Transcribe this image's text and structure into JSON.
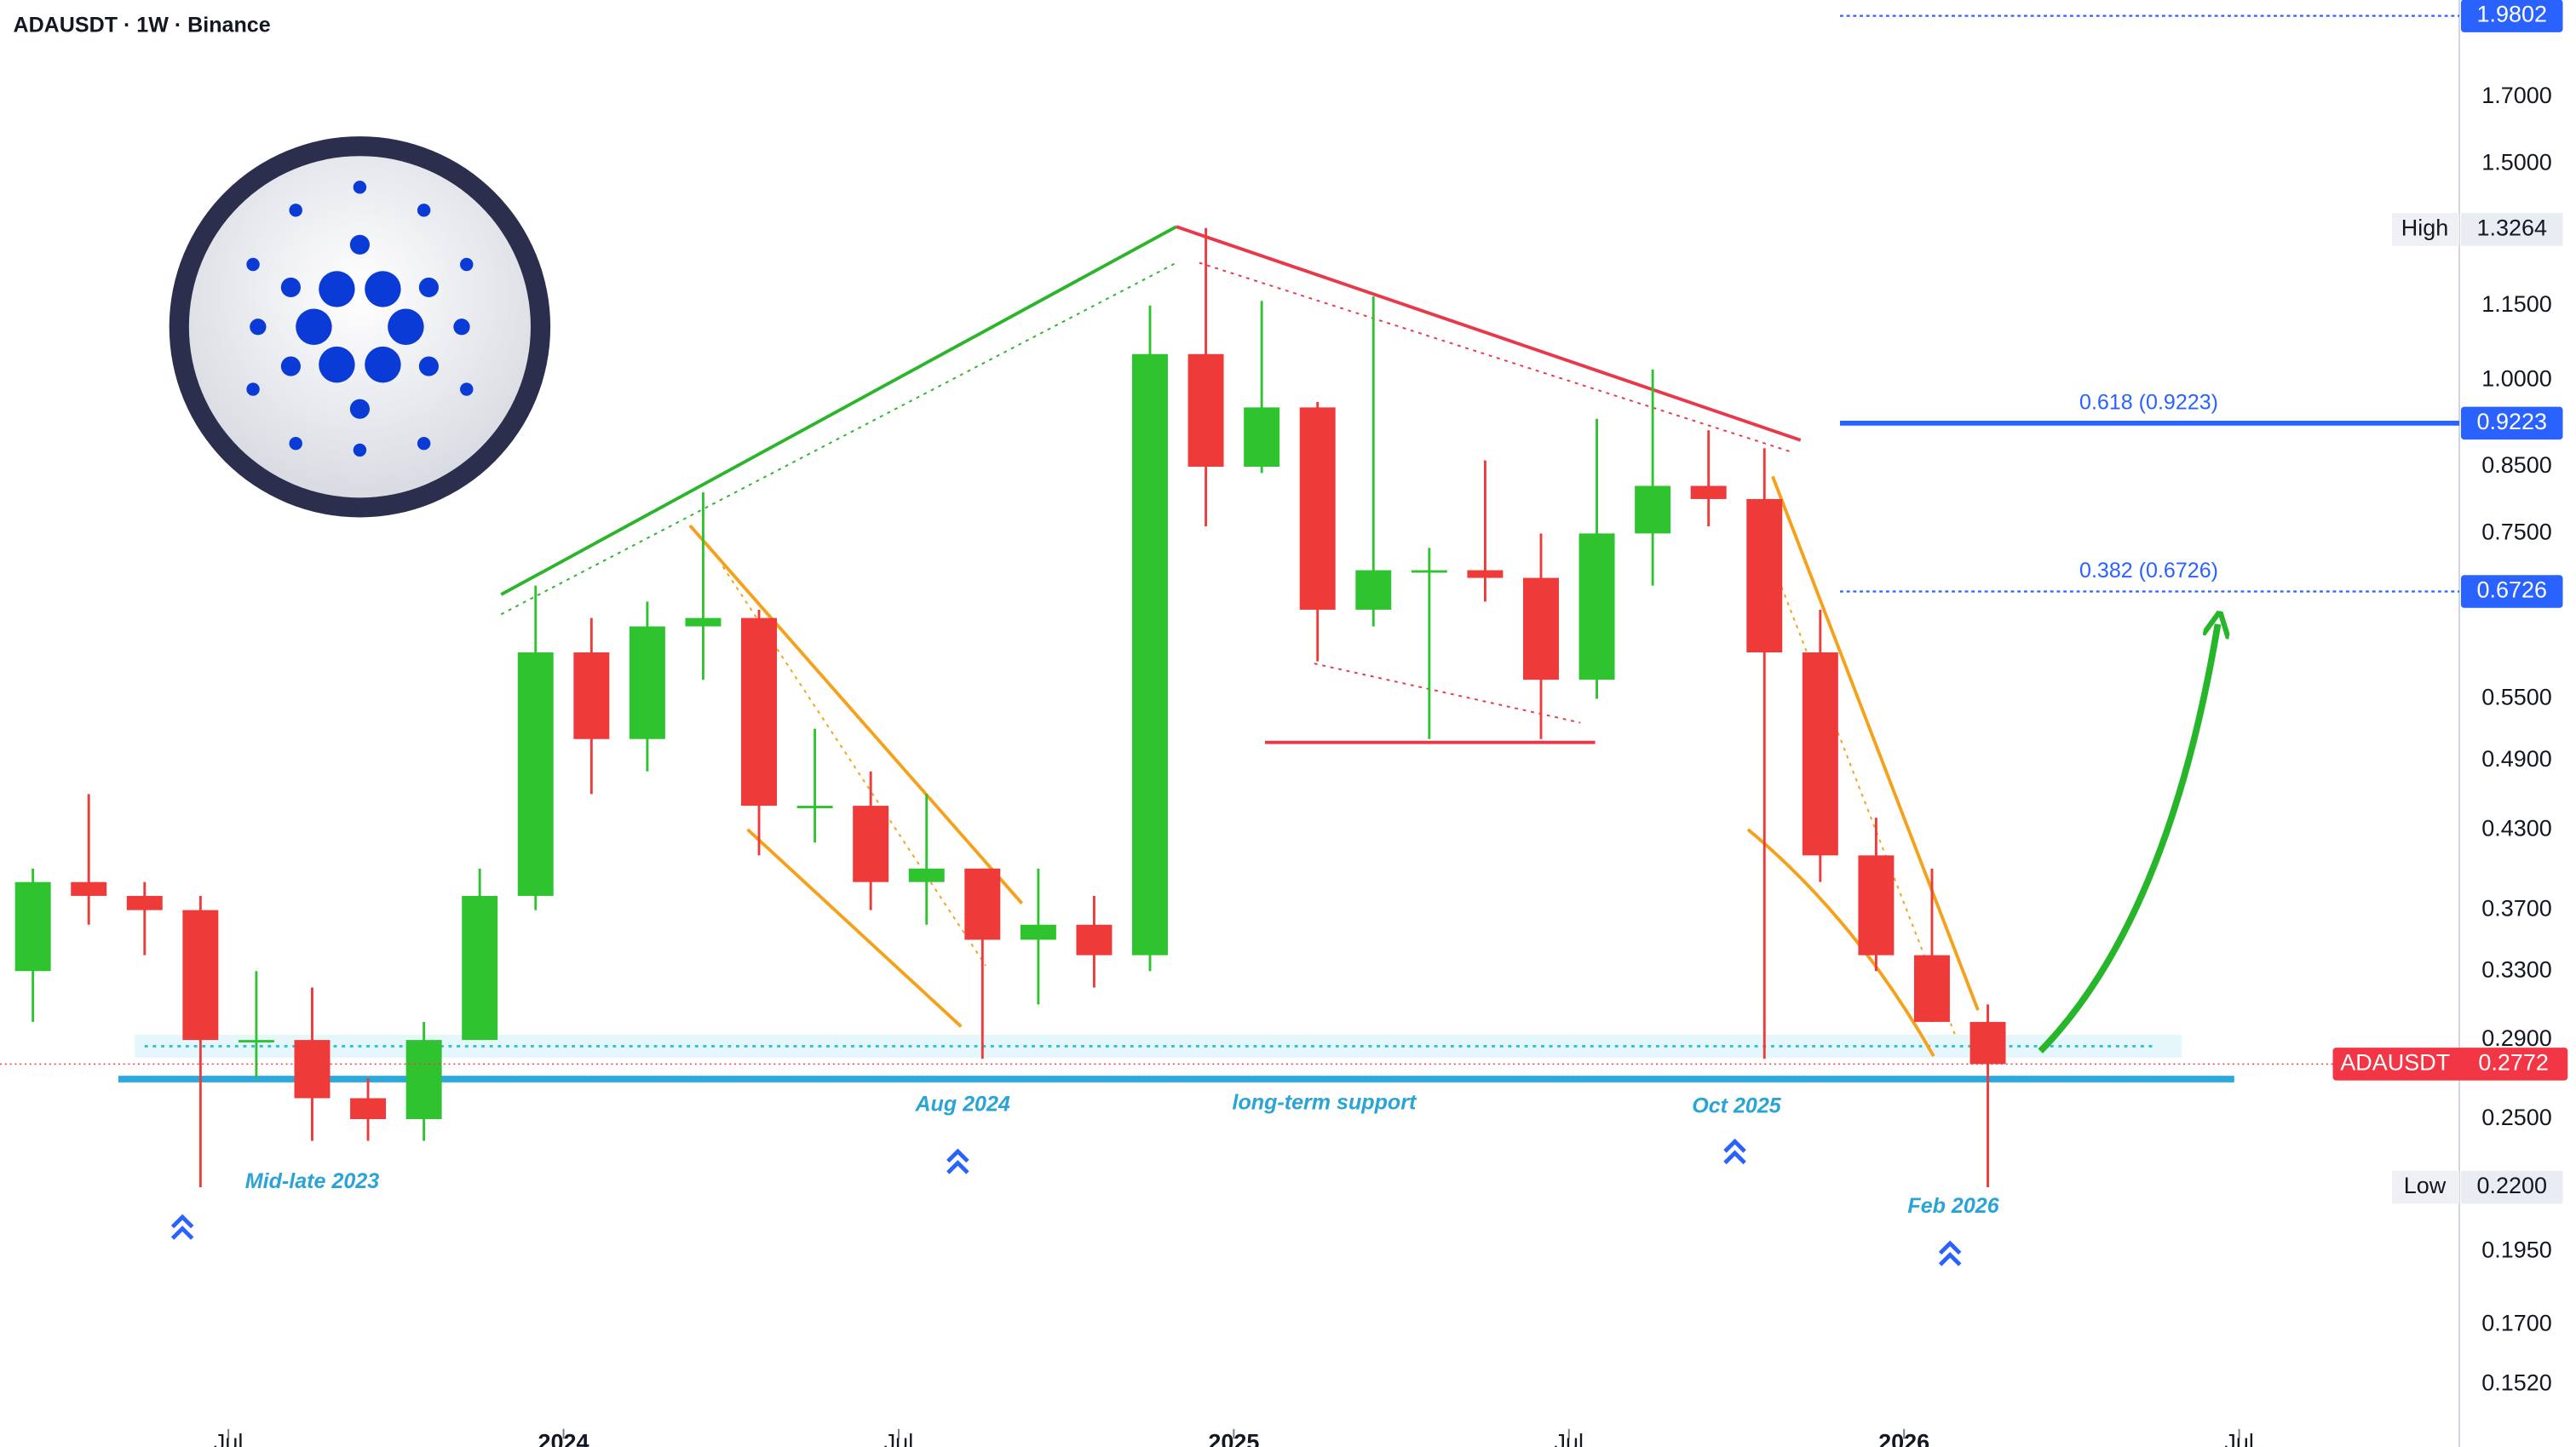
{
  "chart_data": {
    "type": "candlestick",
    "title": "ADAUSDT · 1W · Binance",
    "log_scale": true,
    "up_color": "#2fc42f",
    "down_color": "#ef3a3a",
    "categories": [
      "2023-03",
      "2023-04",
      "2023-05",
      "2023-06",
      "2023-07",
      "2023-08",
      "2023-09",
      "2023-10",
      "2023-11",
      "2023-12",
      "2024-01",
      "2024-02",
      "2024-03",
      "2024-04",
      "2024-05",
      "2024-06",
      "2024-07",
      "2024-08",
      "2024-09",
      "2024-10",
      "2024-11",
      "2024-12",
      "2025-01",
      "2025-02",
      "2025-03",
      "2025-04",
      "2025-05",
      "2025-06",
      "2025-07",
      "2025-08",
      "2025-09",
      "2025-10",
      "2025-11",
      "2025-12",
      "2026-01",
      "2026-02"
    ],
    "ohlc": [
      {
        "o": 0.33,
        "h": 0.4,
        "l": 0.3,
        "c": 0.39
      },
      {
        "o": 0.39,
        "h": 0.46,
        "l": 0.36,
        "c": 0.38
      },
      {
        "o": 0.38,
        "h": 0.39,
        "l": 0.34,
        "c": 0.37
      },
      {
        "o": 0.37,
        "h": 0.38,
        "l": 0.22,
        "c": 0.29
      },
      {
        "o": 0.29,
        "h": 0.33,
        "l": 0.27,
        "c": 0.29
      },
      {
        "o": 0.29,
        "h": 0.32,
        "l": 0.24,
        "c": 0.26
      },
      {
        "o": 0.26,
        "h": 0.27,
        "l": 0.24,
        "c": 0.25
      },
      {
        "o": 0.25,
        "h": 0.3,
        "l": 0.24,
        "c": 0.29
      },
      {
        "o": 0.29,
        "h": 0.4,
        "l": 0.29,
        "c": 0.38
      },
      {
        "o": 0.38,
        "h": 0.68,
        "l": 0.37,
        "c": 0.6
      },
      {
        "o": 0.6,
        "h": 0.64,
        "l": 0.46,
        "c": 0.51
      },
      {
        "o": 0.51,
        "h": 0.66,
        "l": 0.48,
        "c": 0.63
      },
      {
        "o": 0.63,
        "h": 0.81,
        "l": 0.57,
        "c": 0.64
      },
      {
        "o": 0.64,
        "h": 0.65,
        "l": 0.41,
        "c": 0.45
      },
      {
        "o": 0.45,
        "h": 0.52,
        "l": 0.42,
        "c": 0.45
      },
      {
        "o": 0.45,
        "h": 0.48,
        "l": 0.37,
        "c": 0.39
      },
      {
        "o": 0.39,
        "h": 0.46,
        "l": 0.36,
        "c": 0.4
      },
      {
        "o": 0.4,
        "h": 0.4,
        "l": 0.28,
        "c": 0.35
      },
      {
        "o": 0.35,
        "h": 0.4,
        "l": 0.31,
        "c": 0.36
      },
      {
        "o": 0.36,
        "h": 0.38,
        "l": 0.32,
        "c": 0.34
      },
      {
        "o": 0.34,
        "h": 1.15,
        "l": 0.33,
        "c": 1.05
      },
      {
        "o": 1.05,
        "h": 1.33,
        "l": 0.76,
        "c": 0.85
      },
      {
        "o": 0.85,
        "h": 1.16,
        "l": 0.84,
        "c": 0.95
      },
      {
        "o": 0.95,
        "h": 0.96,
        "l": 0.59,
        "c": 0.65
      },
      {
        "o": 0.65,
        "h": 1.17,
        "l": 0.63,
        "c": 0.7
      },
      {
        "o": 0.7,
        "h": 0.73,
        "l": 0.51,
        "c": 0.7
      },
      {
        "o": 0.7,
        "h": 0.86,
        "l": 0.66,
        "c": 0.69
      },
      {
        "o": 0.69,
        "h": 0.75,
        "l": 0.51,
        "c": 0.57
      },
      {
        "o": 0.57,
        "h": 0.93,
        "l": 0.55,
        "c": 0.75
      },
      {
        "o": 0.75,
        "h": 1.02,
        "l": 0.68,
        "c": 0.82
      },
      {
        "o": 0.82,
        "h": 0.91,
        "l": 0.76,
        "c": 0.8
      },
      {
        "o": 0.8,
        "h": 0.88,
        "l": 0.28,
        "c": 0.6
      },
      {
        "o": 0.6,
        "h": 0.65,
        "l": 0.39,
        "c": 0.41
      },
      {
        "o": 0.41,
        "h": 0.44,
        "l": 0.33,
        "c": 0.34
      },
      {
        "o": 0.34,
        "h": 0.4,
        "l": 0.3,
        "c": 0.3
      },
      {
        "o": 0.3,
        "h": 0.31,
        "l": 0.22,
        "c": 0.2772
      }
    ],
    "xticks": [
      {
        "value": "2023-07",
        "label": "Jul"
      },
      {
        "value": "2024-01",
        "label": "2024"
      },
      {
        "value": "2024-07",
        "label": "Jul"
      },
      {
        "value": "2025-01",
        "label": "2025"
      },
      {
        "value": "2025-07",
        "label": "Jul"
      },
      {
        "value": "2026-01",
        "label": "2026"
      },
      {
        "value": "2026-07",
        "label": "Jul"
      }
    ],
    "ylim": [
      0.1433,
      2.04
    ],
    "yticks": [
      {
        "value": 1.7,
        "label": "1.7000"
      },
      {
        "value": 1.5,
        "label": "1.5000"
      },
      {
        "value": 1.15,
        "label": "1.1500"
      },
      {
        "value": 1.0,
        "label": "1.0000"
      },
      {
        "value": 0.85,
        "label": "0.8500"
      },
      {
        "value": 0.75,
        "label": "0.7500"
      },
      {
        "value": 0.55,
        "label": "0.5500"
      },
      {
        "value": 0.49,
        "label": "0.4900"
      },
      {
        "value": 0.43,
        "label": "0.4300"
      },
      {
        "value": 0.37,
        "label": "0.3700"
      },
      {
        "value": 0.33,
        "label": "0.3300"
      },
      {
        "value": 0.29,
        "label": "0.2900"
      },
      {
        "value": 0.25,
        "label": "0.2500"
      },
      {
        "value": 0.195,
        "label": "0.1950"
      },
      {
        "value": 0.17,
        "label": "0.1700"
      },
      {
        "value": 0.152,
        "label": "0.1520"
      }
    ],
    "fib_levels": [
      {
        "value": 1.9802,
        "label": "1.9802",
        "style": "dotted"
      },
      {
        "name": "0.618 (0.9223)",
        "value": 0.9223,
        "label": "0.9223",
        "style": "solid"
      },
      {
        "name": "0.382 (0.6726)",
        "value": 0.6726,
        "label": "0.6726",
        "style": "dotted"
      }
    ],
    "fib_color": "#2962ff",
    "last_price": {
      "name": "ADAUSDT",
      "value": 0.2772,
      "label": "0.2772",
      "color": "#f23645"
    },
    "high": {
      "name": "High",
      "value": 1.3264,
      "label": "1.3264"
    },
    "low": {
      "name": "Low",
      "value": 0.22,
      "label": "0.2200"
    },
    "annotations": [
      "Mid-late 2023",
      "Aug 2024",
      "long-term support",
      "Oct 2025",
      "Feb 2026"
    ]
  }
}
